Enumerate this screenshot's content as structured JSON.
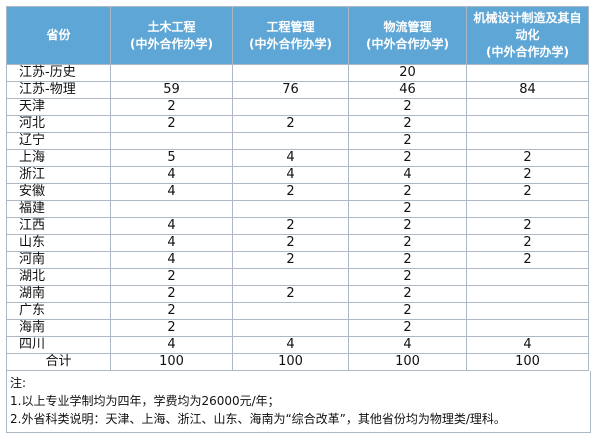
{
  "table": {
    "headers": [
      {
        "lines": [
          "省份"
        ]
      },
      {
        "lines": [
          "土木工程",
          "(中外合作办学)"
        ]
      },
      {
        "lines": [
          "工程管理",
          "(中外合作办学)"
        ]
      },
      {
        "lines": [
          "物流管理",
          "(中外合作办学)"
        ]
      },
      {
        "lines": [
          "机械设计制造及其自",
          "动化",
          "(中外合作办学)"
        ]
      }
    ],
    "rows": [
      [
        "江苏-历史",
        "",
        "",
        "20",
        ""
      ],
      [
        "江苏-物理",
        "59",
        "76",
        "46",
        "84"
      ],
      [
        "天津",
        "2",
        "",
        "2",
        ""
      ],
      [
        "河北",
        "2",
        "2",
        "2",
        ""
      ],
      [
        "辽宁",
        "",
        "",
        "2",
        ""
      ],
      [
        "上海",
        "5",
        "4",
        "2",
        "2"
      ],
      [
        "浙江",
        "4",
        "4",
        "4",
        "2"
      ],
      [
        "安徽",
        "4",
        "2",
        "2",
        "2"
      ],
      [
        "福建",
        "",
        "",
        "2",
        ""
      ],
      [
        "江西",
        "4",
        "2",
        "2",
        "2"
      ],
      [
        "山东",
        "4",
        "2",
        "2",
        "2"
      ],
      [
        "河南",
        "4",
        "2",
        "2",
        "2"
      ],
      [
        "湖北",
        "2",
        "",
        "2",
        ""
      ],
      [
        "湖南",
        "2",
        "2",
        "2",
        ""
      ],
      [
        "广东",
        "2",
        "",
        "2",
        ""
      ],
      [
        "海南",
        "2",
        "",
        "2",
        ""
      ],
      [
        "四川",
        "4",
        "4",
        "4",
        "4"
      ],
      [
        "合计",
        "100",
        "100",
        "100",
        "100"
      ]
    ]
  },
  "notes": {
    "title": "注:",
    "items": [
      "1.以上专业学制均为四年，学费均为26000元/年；",
      "2.外省科类说明：天津、上海、浙江、山东、海南为“综合改革”，其他省份均为物理类/理科。"
    ]
  },
  "colors": {
    "header_bg": "#5ea6d6",
    "header_text": "#ffffff",
    "border": "#aeb8c4"
  }
}
